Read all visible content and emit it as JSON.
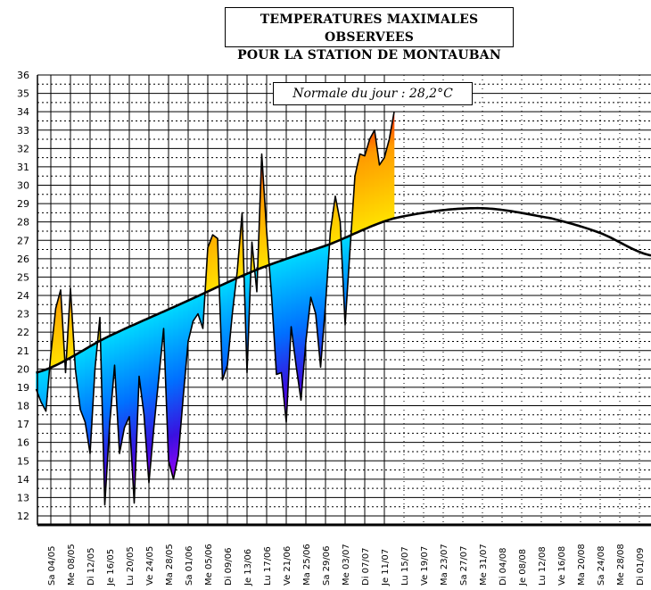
{
  "chart_data": {
    "type": "area",
    "title_line1": "TEMPERATURES MAXIMALES OBSERVEES",
    "title_line2": "POUR LA STATION DE MONTAUBAN",
    "annotation": "Normale du jour : 28,2°C",
    "xlabel": "",
    "ylabel": "",
    "ylim": [
      11.5,
      36
    ],
    "xlim": [
      "01/05",
      "03/09"
    ],
    "yticks": [
      12,
      13,
      14,
      15,
      16,
      17,
      18,
      19,
      20,
      21,
      22,
      23,
      24,
      25,
      26,
      27,
      28,
      29,
      30,
      31,
      32,
      33,
      34,
      35,
      36
    ],
    "xtick_labels": [
      {
        "date": "04/05",
        "label": "Sa 04/05"
      },
      {
        "date": "08/05",
        "label": "Me 08/05"
      },
      {
        "date": "12/05",
        "label": "Di 12/05"
      },
      {
        "date": "16/05",
        "label": "Je 16/05"
      },
      {
        "date": "20/05",
        "label": "Lu 20/05"
      },
      {
        "date": "24/05",
        "label": "Ve 24/05"
      },
      {
        "date": "28/05",
        "label": "Ma 28/05"
      },
      {
        "date": "01/06",
        "label": "Sa 01/06"
      },
      {
        "date": "05/06",
        "label": "Me 05/06"
      },
      {
        "date": "09/06",
        "label": "Di 09/06"
      },
      {
        "date": "13/06",
        "label": "Je 13/06"
      },
      {
        "date": "17/06",
        "label": "Lu 17/06"
      },
      {
        "date": "21/06",
        "label": "Ve 21/06"
      },
      {
        "date": "25/06",
        "label": "Ma 25/06"
      },
      {
        "date": "29/06",
        "label": "Sa 29/06"
      },
      {
        "date": "03/07",
        "label": "Me 03/07"
      },
      {
        "date": "07/07",
        "label": "Di 07/07"
      },
      {
        "date": "11/07",
        "label": "Je 11/07"
      },
      {
        "date": "15/07",
        "label": "Lu 15/07"
      },
      {
        "date": "19/07",
        "label": "Ve 19/07"
      },
      {
        "date": "23/07",
        "label": "Ma 23/07"
      },
      {
        "date": "27/07",
        "label": "Sa 27/07"
      },
      {
        "date": "31/07",
        "label": "Me 31/07"
      },
      {
        "date": "04/08",
        "label": "Di 04/08"
      },
      {
        "date": "08/08",
        "label": "Je 08/08"
      },
      {
        "date": "12/08",
        "label": "Lu 12/08"
      },
      {
        "date": "16/08",
        "label": "Ve 16/08"
      },
      {
        "date": "20/08",
        "label": "Ma 20/08"
      },
      {
        "date": "24/08",
        "label": "Sa 24/08"
      },
      {
        "date": "28/08",
        "label": "Me 28/08"
      },
      {
        "date": "01/09",
        "label": "Di 01/09"
      }
    ],
    "grid": true,
    "colors": {
      "above_low": "#ffe000",
      "above_mid": "#ff9a00",
      "above_high": "#ff2000",
      "below_low": "#00d8ff",
      "below_mid": "#0070ff",
      "below_deep": "#3a10e0",
      "below_extreme": "#b000ff",
      "line": "#000000"
    },
    "series": [
      {
        "role": "observed",
        "x": [
          "01/05",
          "02/05",
          "03/05",
          "04/05",
          "05/05",
          "06/05",
          "07/05",
          "08/05",
          "09/05",
          "10/05",
          "11/05",
          "12/05",
          "13/05",
          "14/05",
          "15/05",
          "16/05",
          "17/05",
          "18/05",
          "19/05",
          "20/05",
          "21/05",
          "22/05",
          "23/05",
          "24/05",
          "25/05",
          "26/05",
          "27/05",
          "28/05",
          "29/05",
          "30/05",
          "31/05",
          "01/06",
          "02/06",
          "03/06",
          "04/06",
          "05/06",
          "06/06",
          "07/06",
          "08/06",
          "09/06",
          "10/06",
          "11/06",
          "12/06",
          "13/06",
          "14/06",
          "15/06",
          "16/06",
          "17/06",
          "18/06",
          "19/06",
          "20/06",
          "21/06",
          "22/06",
          "23/06",
          "24/06",
          "25/06",
          "26/06",
          "27/06",
          "28/06",
          "29/06",
          "30/06",
          "01/07",
          "02/07",
          "03/07",
          "04/07",
          "05/07",
          "06/07",
          "07/07",
          "08/07",
          "09/07",
          "10/07",
          "11/07",
          "12/07",
          "13/07"
        ],
        "values": [
          18.9,
          18.2,
          17.7,
          20.8,
          23.3,
          24.3,
          19.8,
          24.4,
          20.0,
          17.8,
          17.1,
          15.4,
          20.0,
          22.8,
          12.6,
          17.0,
          20.2,
          15.4,
          16.8,
          17.4,
          12.7,
          19.6,
          17.5,
          13.8,
          16.8,
          19.5,
          22.2,
          15.0,
          14.0,
          15.3,
          18.5,
          21.5,
          22.6,
          23.0,
          22.2,
          26.6,
          27.3,
          27.1,
          19.4,
          20.2,
          23.0,
          25.3,
          28.5,
          19.8,
          26.9,
          24.2,
          31.7,
          27.5,
          24.0,
          19.7,
          19.8,
          17.1,
          22.3,
          20.2,
          18.3,
          21.5,
          23.9,
          23.0,
          20.1,
          23.5,
          27.5,
          29.4,
          28.0,
          22.4,
          26.5,
          30.5,
          31.7,
          31.6,
          32.5,
          33.0,
          31.1,
          31.5,
          32.5,
          34.0
        ]
      },
      {
        "role": "normal",
        "x": [
          "01/05",
          "16/05",
          "31/05",
          "15/06",
          "30/06",
          "13/07",
          "30/07",
          "14/08",
          "24/08",
          "03/09"
        ],
        "values": [
          19.8,
          21.8,
          23.6,
          25.4,
          26.8,
          28.2,
          28.75,
          28.2,
          27.4,
          26.2
        ]
      }
    ]
  }
}
